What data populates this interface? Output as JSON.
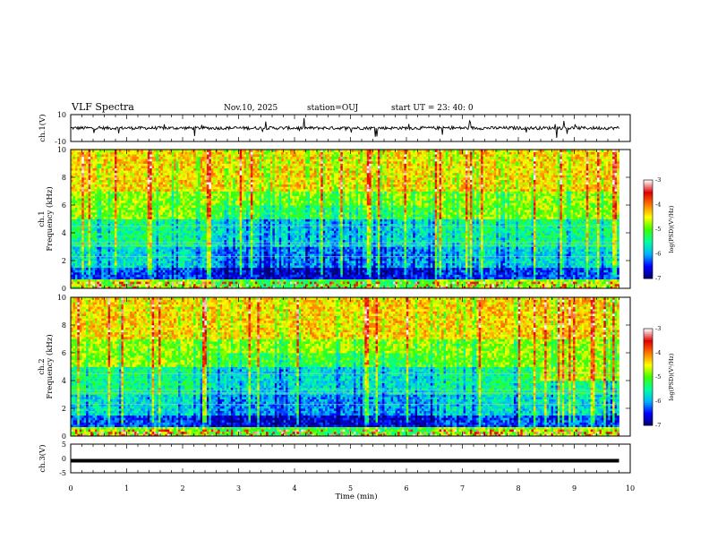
{
  "chart_data": {
    "type": "heatmap",
    "title": "VLF Spectra",
    "date": "Nov.10, 2025",
    "station": "station=OUJ",
    "start": "start UT =  23: 40: 0",
    "xlabel": "Time (min)",
    "xlim": [
      0,
      10
    ],
    "x_ticks": [
      "0",
      "1",
      "2",
      "3",
      "4",
      "5",
      "6",
      "7",
      "8",
      "9",
      "10"
    ],
    "waveform_ch1": {
      "ylabel": "ch.1(V)",
      "ylim": [
        -10,
        10
      ],
      "y_ticks": [
        "10",
        "-10"
      ],
      "baseline": 0,
      "noise_amplitude": 1.2
    },
    "spectrogram_ch1": {
      "ylabel_line1": "ch.1",
      "ylabel_line2": "Frequency (kHz)",
      "ylim": [
        0,
        10
      ],
      "y_ticks": [
        "0",
        "2",
        "4",
        "6",
        "8",
        "10"
      ]
    },
    "spectrogram_ch2": {
      "ylabel_line1": "ch.2",
      "ylabel_line2": "Frequency (kHz)",
      "ylim": [
        0,
        10
      ],
      "y_ticks": [
        "0",
        "2",
        "4",
        "6",
        "8",
        "10"
      ]
    },
    "waveform_ch3": {
      "ylabel": "ch.3(V)",
      "ylim": [
        -5,
        5
      ],
      "y_ticks": [
        "5",
        "0",
        "-5"
      ],
      "value": -0.8
    },
    "colorbar": {
      "label": "log(PSD)(V²/Hz)",
      "range": [
        -7,
        -3
      ],
      "ticks": [
        "-3",
        "-4",
        "-5",
        "-6",
        "-7"
      ],
      "colors": [
        "#00006e",
        "#0000ff",
        "#00b4ff",
        "#00ffa0",
        "#3cff00",
        "#ffff00",
        "#ff7800",
        "#e00000",
        "#ffffff"
      ]
    }
  }
}
